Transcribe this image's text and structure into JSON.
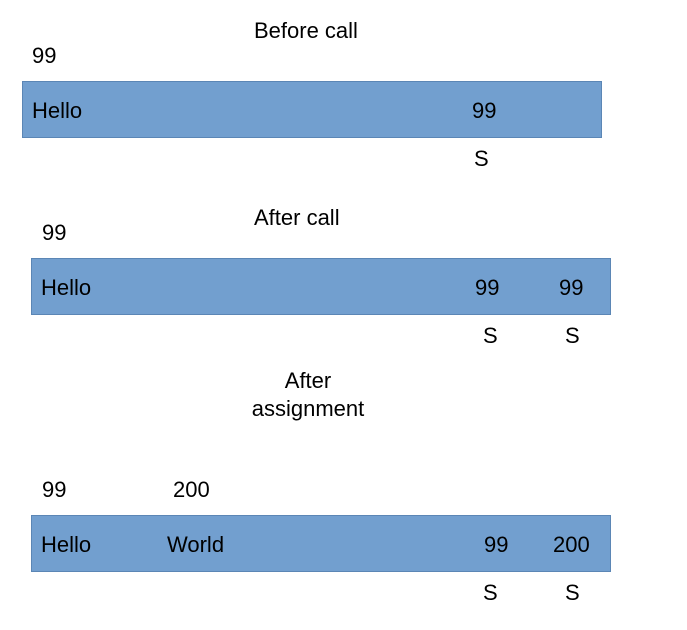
{
  "panels": [
    {
      "title": "Before call",
      "above": [
        "99"
      ],
      "cells": [
        "Hello",
        "99"
      ],
      "below": [
        "S"
      ]
    },
    {
      "title": "After call",
      "above": [
        "99"
      ],
      "cells": [
        "Hello",
        "99",
        "99"
      ],
      "below": [
        "S",
        "S"
      ]
    },
    {
      "title_lines": [
        "After",
        "assignment"
      ],
      "above": [
        "99",
        "200"
      ],
      "cells": [
        "Hello",
        "World",
        "99",
        "200"
      ],
      "below": [
        "S",
        "S"
      ]
    }
  ],
  "colors": {
    "bar_fill": "#729fcf",
    "text": "#000000",
    "background": "#ffffff"
  }
}
